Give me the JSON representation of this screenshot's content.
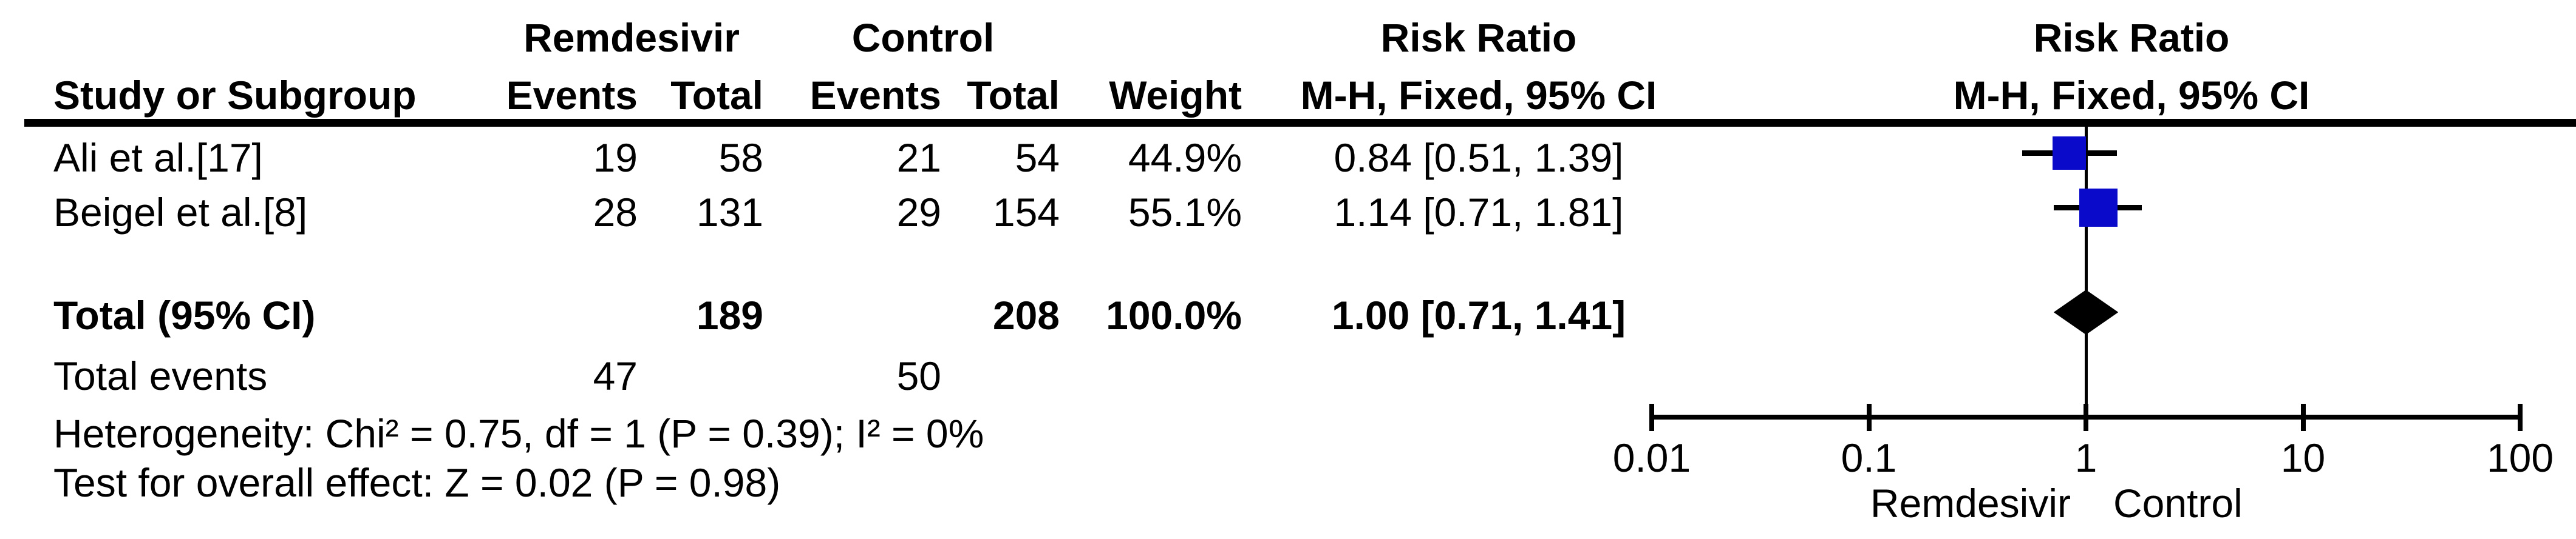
{
  "headers": {
    "group1": "Remdesivir",
    "group2": "Control",
    "risk_ratio_left": "Risk Ratio",
    "risk_ratio_right": "Risk Ratio",
    "study": "Study or Subgroup",
    "events1": "Events",
    "total1": "Total",
    "events2": "Events",
    "total2": "Total",
    "weight": "Weight",
    "method_left": "M-H, Fixed, 95% CI",
    "method_right": "M-H, Fixed, 95% CI"
  },
  "rows": [
    {
      "study": "Ali et al.[17]",
      "t_events": "19",
      "t_total": "58",
      "c_events": "21",
      "c_total": "54",
      "weight": "44.9%",
      "rr_text": "0.84 [0.51, 1.39]"
    },
    {
      "study": "Beigel et al.[8]",
      "t_events": "28",
      "t_total": "131",
      "c_events": "29",
      "c_total": "154",
      "weight": "55.1%",
      "rr_text": "1.14 [0.71, 1.81]"
    }
  ],
  "total_row": {
    "label": "Total (95% CI)",
    "t_total": "189",
    "c_total": "208",
    "weight": "100.0%",
    "rr_text": "1.00 [0.71, 1.41]"
  },
  "total_events_row": {
    "label": "Total events",
    "t_events": "47",
    "c_events": "50"
  },
  "footnotes": {
    "heterogeneity": "Heterogeneity: Chi² = 0.75, df = 1 (P = 0.39); I² = 0%",
    "overall_effect": "Test for overall effect: Z = 0.02 (P = 0.98)"
  },
  "axis": {
    "tick_labels": [
      "0.01",
      "0.1",
      "1",
      "10",
      "100"
    ],
    "label_left": "Remdesivir",
    "label_right": "Control"
  },
  "colors": {
    "marker_blue": "#0A0ACA",
    "diamond_black": "#000000",
    "text": "#000000"
  },
  "chart_data": {
    "type": "forest",
    "measure": "Risk Ratio",
    "model": "M-H, Fixed, 95% CI",
    "x_scale": "log",
    "x_ticks": [
      0.01,
      0.1,
      1,
      10,
      100
    ],
    "xlim": [
      0.01,
      100
    ],
    "null_line": 1,
    "studies": [
      {
        "name": "Ali et al.[17]",
        "events_treatment": 19,
        "total_treatment": 58,
        "events_control": 21,
        "total_control": 54,
        "weight_pct": 44.9,
        "rr": 0.84,
        "ci_low": 0.51,
        "ci_high": 1.39
      },
      {
        "name": "Beigel et al.[8]",
        "events_treatment": 28,
        "total_treatment": 131,
        "events_control": 29,
        "total_control": 154,
        "weight_pct": 55.1,
        "rr": 1.14,
        "ci_low": 0.71,
        "ci_high": 1.81
      }
    ],
    "total": {
      "label": "Total (95% CI)",
      "total_treatment": 189,
      "total_control": 208,
      "weight_pct": 100.0,
      "rr": 1.0,
      "ci_low": 0.71,
      "ci_high": 1.41,
      "events_treatment": 47,
      "events_control": 50
    },
    "heterogeneity": {
      "chi2": 0.75,
      "df": 1,
      "p": 0.39,
      "i2_pct": 0
    },
    "overall_effect": {
      "z": 0.02,
      "p": 0.98
    },
    "favours_left": "Remdesivir",
    "favours_right": "Control"
  }
}
